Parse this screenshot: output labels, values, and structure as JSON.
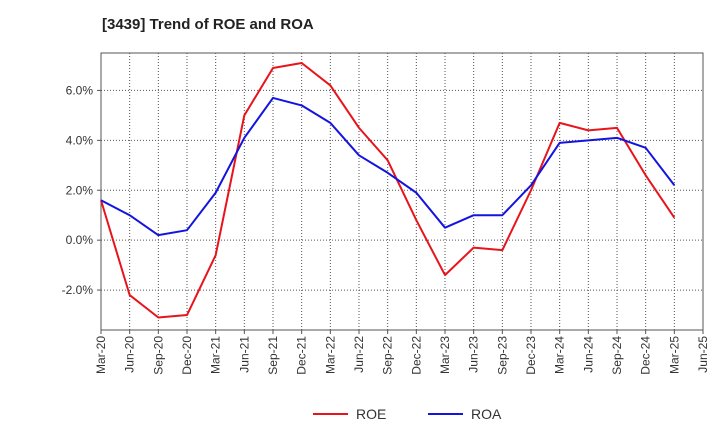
{
  "chart_data": {
    "type": "line",
    "title": "[3439]  Trend of ROE and ROA",
    "categories": [
      "Mar-20",
      "Jun-20",
      "Sep-20",
      "Dec-20",
      "Mar-21",
      "Jun-21",
      "Sep-21",
      "Dec-21",
      "Mar-22",
      "Jun-22",
      "Sep-22",
      "Dec-22",
      "Mar-23",
      "Jun-23",
      "Sep-23",
      "Dec-23",
      "Mar-24",
      "Jun-24",
      "Sep-24",
      "Dec-24",
      "Mar-25",
      "Jun-25"
    ],
    "series": [
      {
        "name": "ROE",
        "color": "#e8141b",
        "values": [
          1.6,
          -2.2,
          -3.1,
          -3.0,
          -0.6,
          5.0,
          6.9,
          7.1,
          6.2,
          4.5,
          3.2,
          0.8,
          -1.4,
          -0.3,
          -0.4,
          2.0,
          4.7,
          4.4,
          4.5,
          2.6,
          0.9,
          null
        ]
      },
      {
        "name": "ROA",
        "color": "#1414e0",
        "values": [
          1.6,
          1.0,
          0.2,
          0.4,
          1.9,
          4.1,
          5.7,
          5.4,
          4.7,
          3.4,
          2.7,
          1.9,
          0.5,
          1.0,
          1.0,
          2.2,
          3.9,
          4.0,
          4.1,
          3.7,
          2.2,
          null
        ]
      }
    ],
    "yticks": [
      "6.0%",
      "4.0%",
      "2.0%",
      "0.0%",
      "-2.0%"
    ],
    "ytick_values": [
      6,
      4,
      2,
      0,
      -2
    ],
    "ylim": [
      -3.6,
      7.5
    ],
    "grid": true,
    "legend_position": "bottom-center"
  }
}
